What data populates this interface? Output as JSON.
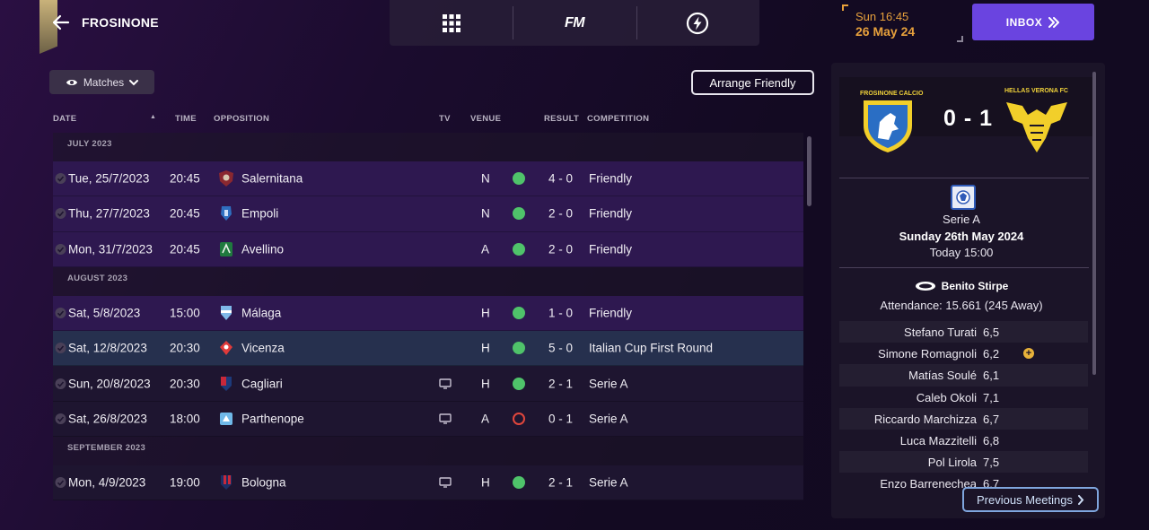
{
  "header": {
    "club_name": "FROSINONE",
    "nav_fm_label": "FM",
    "date_time": "Sun 16:45",
    "date_day": "26 May 24",
    "inbox_label": "INBOX"
  },
  "toolbar": {
    "view_label": "Matches",
    "arrange_label": "Arrange Friendly"
  },
  "table": {
    "columns": {
      "date": "DATE",
      "time": "TIME",
      "opposition": "OPPOSITION",
      "tv": "TV",
      "venue": "VENUE",
      "result": "RESULT",
      "competition": "COMPETITION"
    },
    "groups": [
      "JULY 2023",
      "AUGUST 2023",
      "SEPTEMBER 2023"
    ],
    "rows": [
      {
        "date": "Tue, 25/7/2023",
        "time": "20:45",
        "opposition": "Salernitana",
        "venue": "N",
        "score": "4 - 0",
        "competition": "Friendly"
      },
      {
        "date": "Thu, 27/7/2023",
        "time": "20:45",
        "opposition": "Empoli",
        "venue": "N",
        "score": "2 - 0",
        "competition": "Friendly"
      },
      {
        "date": "Mon, 31/7/2023",
        "time": "20:45",
        "opposition": "Avellino",
        "venue": "A",
        "score": "2 - 0",
        "competition": "Friendly"
      },
      {
        "date": "Sat, 5/8/2023",
        "time": "15:00",
        "opposition": "Málaga",
        "venue": "H",
        "score": "1 - 0",
        "competition": "Friendly"
      },
      {
        "date": "Sat, 12/8/2023",
        "time": "20:30",
        "opposition": "Vicenza",
        "venue": "H",
        "score": "5 - 0",
        "competition": "Italian Cup First Round"
      },
      {
        "date": "Sun, 20/8/2023",
        "time": "20:30",
        "opposition": "Cagliari",
        "venue": "H",
        "score": "2 - 1",
        "competition": "Serie A"
      },
      {
        "date": "Sat, 26/8/2023",
        "time": "18:00",
        "opposition": "Parthenope",
        "venue": "A",
        "score": "0 - 1",
        "competition": "Serie A"
      },
      {
        "date": "Mon, 4/9/2023",
        "time": "19:00",
        "opposition": "Bologna",
        "venue": "H",
        "score": "2 - 1",
        "competition": "Serie A"
      }
    ]
  },
  "panel": {
    "home_label": "FROSINONE CALCIO",
    "away_label": "HELLAS VERONA FC",
    "score": "0 - 1",
    "competition": "Serie A",
    "match_date": "Sunday 26th May 2024",
    "kickoff": "Today 15:00",
    "stadium": "Benito Stirpe",
    "attendance": "Attendance: 15.661 (245 Away)",
    "players": [
      {
        "name": "Stefano Turati",
        "rating": "6,5"
      },
      {
        "name": "Simone Romagnoli",
        "rating": "6,2"
      },
      {
        "name": "Matías Soulé",
        "rating": "6,1"
      },
      {
        "name": "Caleb Okoli",
        "rating": "7,1"
      },
      {
        "name": "Riccardo Marchizza",
        "rating": "6,7"
      },
      {
        "name": "Luca Mazzitelli",
        "rating": "6,8"
      },
      {
        "name": "Pol Lirola",
        "rating": "7,5"
      },
      {
        "name": "Enzo Barrenechea",
        "rating": "6,7"
      }
    ],
    "previous_meetings_label": "Previous Meetings"
  },
  "colors": {
    "accent": "#6a44e0",
    "win": "#4fc36a",
    "loss": "#e0463c",
    "date_text": "#e6a03c"
  }
}
